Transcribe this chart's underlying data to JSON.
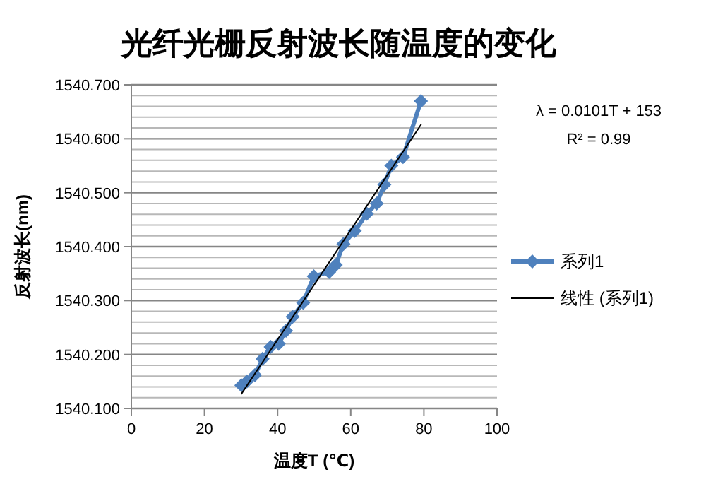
{
  "chart_data": {
    "type": "line",
    "title": "光纤光栅反射波长随温度的变化",
    "xlabel": "温度T (℃)",
    "ylabel": "反射波长(nm)",
    "series": [
      {
        "name": "系列1",
        "color": "#4f81bd",
        "marker": "diamond",
        "x": [
          30.1,
          31.6,
          33.8,
          35.9,
          38.1,
          40.3,
          42.3,
          44.1,
          47.0,
          49.9,
          54.1,
          55.9,
          58.0,
          61.1,
          64.4,
          67.1,
          69.2,
          71.1,
          74.3,
          79.2
        ],
        "values": [
          1540.143,
          1540.15,
          1540.162,
          1540.192,
          1540.214,
          1540.22,
          1540.244,
          1540.27,
          1540.296,
          1540.345,
          1540.353,
          1540.366,
          1540.405,
          1540.429,
          1540.461,
          1540.48,
          1540.515,
          1540.55,
          1540.566,
          1540.67
        ]
      },
      {
        "name": "线性 (系列1)",
        "color": "#000000",
        "marker": "none",
        "x": [
          30.1,
          79.2
        ],
        "values": [
          1540.127,
          1540.626
        ]
      }
    ],
    "xlim": [
      0,
      100
    ],
    "xticks": [
      0,
      20,
      40,
      60,
      80,
      100
    ],
    "ylim": [
      1540.1,
      1540.7
    ],
    "yticks": [
      {
        "value": 1540.1,
        "label": "1540.100"
      },
      {
        "value": 1540.12,
        "label": null
      },
      {
        "value": 1540.14,
        "label": null
      },
      {
        "value": 1540.16,
        "label": null
      },
      {
        "value": 1540.18,
        "label": null
      },
      {
        "value": 1540.2,
        "label": "1540.200"
      },
      {
        "value": 1540.22,
        "label": null
      },
      {
        "value": 1540.24,
        "label": null
      },
      {
        "value": 1540.26,
        "label": null
      },
      {
        "value": 1540.28,
        "label": null
      },
      {
        "value": 1540.3,
        "label": "1540.300"
      },
      {
        "value": 1540.32,
        "label": null
      },
      {
        "value": 1540.34,
        "label": null
      },
      {
        "value": 1540.36,
        "label": null
      },
      {
        "value": 1540.38,
        "label": null
      },
      {
        "value": 1540.4,
        "label": "1540.400"
      },
      {
        "value": 1540.42,
        "label": null
      },
      {
        "value": 1540.44,
        "label": null
      },
      {
        "value": 1540.46,
        "label": null
      },
      {
        "value": 1540.48,
        "label": null
      },
      {
        "value": 1540.5,
        "label": "1540.500"
      },
      {
        "value": 1540.52,
        "label": null
      },
      {
        "value": 1540.54,
        "label": null
      },
      {
        "value": 1540.56,
        "label": null
      },
      {
        "value": 1540.58,
        "label": null
      },
      {
        "value": 1540.6,
        "label": "1540.600"
      },
      {
        "value": 1540.62,
        "label": null
      },
      {
        "value": 1540.64,
        "label": null
      },
      {
        "value": 1540.66,
        "label": null
      },
      {
        "value": 1540.68,
        "label": null
      },
      {
        "value": 1540.7,
        "label": "1540.700"
      }
    ],
    "grid": "y",
    "legend": "right",
    "annotations": [
      "λ = 0.0101T + 153",
      "R² = 0.99"
    ]
  }
}
